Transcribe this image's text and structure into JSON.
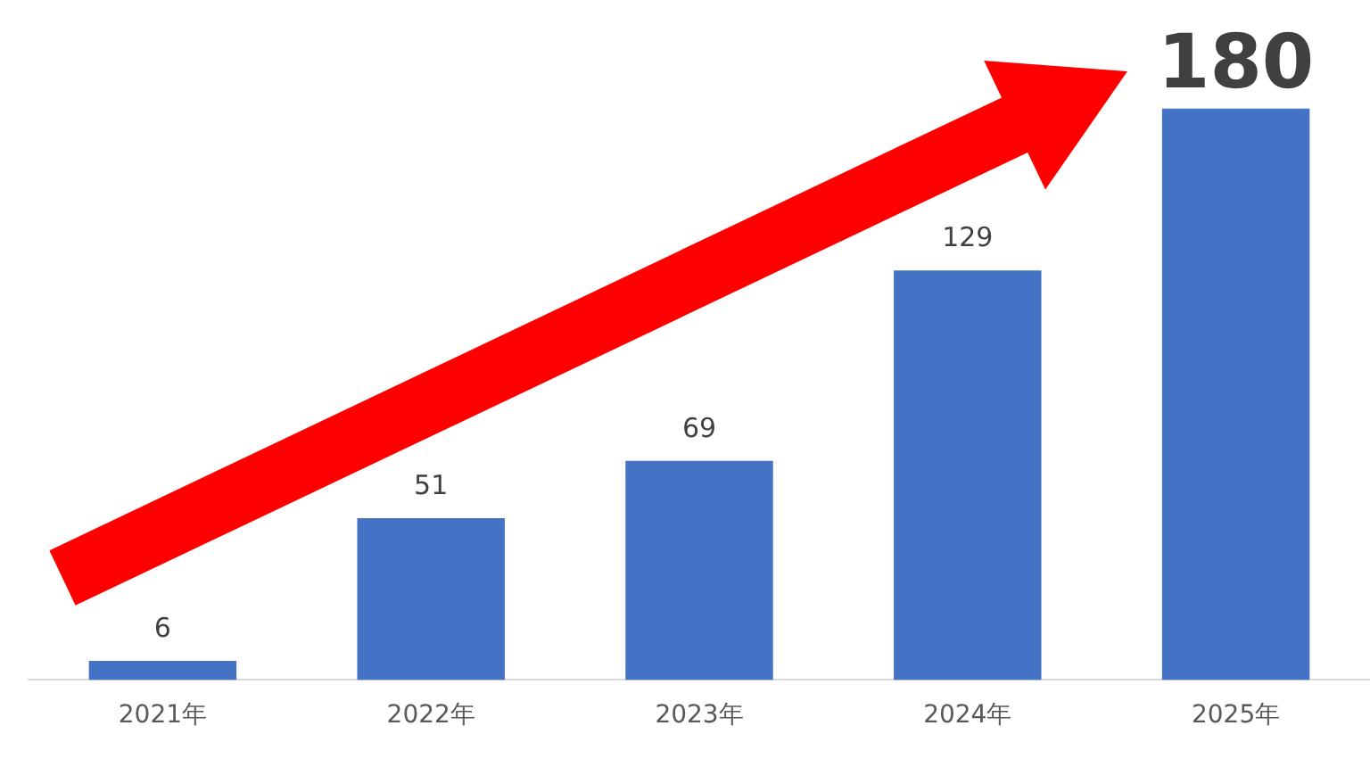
{
  "chart_data": {
    "type": "bar",
    "categories": [
      "2021年",
      "2022年",
      "2023年",
      "2024年",
      "2025年"
    ],
    "values": [
      6,
      51,
      69,
      129,
      180
    ],
    "color": "#4472c4",
    "data_labels": true,
    "grid": false,
    "legend": false
  }
}
